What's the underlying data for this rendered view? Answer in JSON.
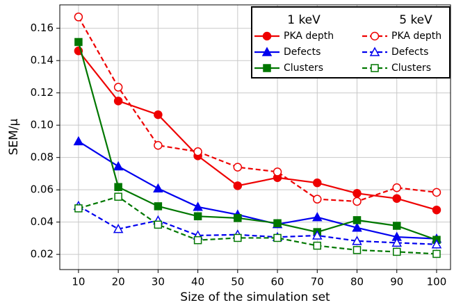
{
  "chart_data": {
    "type": "line",
    "x_label": "Size of the simulation set",
    "y_label": "SEM/μ",
    "x": [
      10,
      20,
      30,
      40,
      50,
      60,
      70,
      80,
      90,
      100
    ],
    "xlim": [
      5.3,
      103.5
    ],
    "xticks": [
      10,
      20,
      30,
      40,
      50,
      60,
      70,
      80,
      90,
      100
    ],
    "ylim": [
      0.0106,
      0.1745
    ],
    "yticks": [
      {
        "value": 0.02,
        "label": "0.02"
      },
      {
        "value": 0.04,
        "label": "0.04"
      },
      {
        "value": 0.06,
        "label": "0.06"
      },
      {
        "value": 0.08,
        "label": "0.08"
      },
      {
        "value": 0.1,
        "label": "0.10"
      },
      {
        "value": 0.12,
        "label": "0.12"
      },
      {
        "value": 0.14,
        "label": "0.14"
      },
      {
        "value": 0.16,
        "label": "0.16"
      }
    ],
    "grid": true,
    "legend_position": "upper right",
    "legend_titles": [
      "1 keV",
      "5 keV"
    ],
    "series": [
      {
        "name": "PKA depth",
        "color": "#ee0000",
        "marker": "circle",
        "filled": true,
        "dashed": false,
        "values": [
          0.146,
          0.115,
          0.1065,
          0.081,
          0.0625,
          0.0675,
          0.0643,
          0.0578,
          0.0546,
          0.0475
        ]
      },
      {
        "name": "Defects",
        "color": "#0000ee",
        "marker": "triangle",
        "filled": true,
        "dashed": false,
        "values": [
          0.09,
          0.0745,
          0.0608,
          0.0494,
          0.0446,
          0.0387,
          0.043,
          0.0365,
          0.0308,
          0.0297
        ]
      },
      {
        "name": "Clusters",
        "color": "#007700",
        "marker": "square",
        "filled": true,
        "dashed": false,
        "values": [
          0.1515,
          0.0617,
          0.0498,
          0.0436,
          0.0425,
          0.0393,
          0.0338,
          0.0412,
          0.0377,
          0.029
        ]
      },
      {
        "name": "PKA depth",
        "color": "#ee0000",
        "marker": "circle",
        "filled": false,
        "dashed": true,
        "values": [
          0.167,
          0.1235,
          0.0875,
          0.0836,
          0.074,
          0.0711,
          0.0542,
          0.0528,
          0.0613,
          0.0584
        ]
      },
      {
        "name": "Defects",
        "color": "#0000ee",
        "marker": "triangle",
        "filled": false,
        "dashed": true,
        "values": [
          0.05,
          0.0357,
          0.041,
          0.0317,
          0.0322,
          0.0307,
          0.0317,
          0.0283,
          0.0272,
          0.0262
        ]
      },
      {
        "name": "Clusters",
        "color": "#007700",
        "marker": "square",
        "filled": false,
        "dashed": true,
        "values": [
          0.0485,
          0.0557,
          0.0384,
          0.0288,
          0.0302,
          0.0302,
          0.0254,
          0.0227,
          0.0216,
          0.0203
        ]
      }
    ]
  }
}
